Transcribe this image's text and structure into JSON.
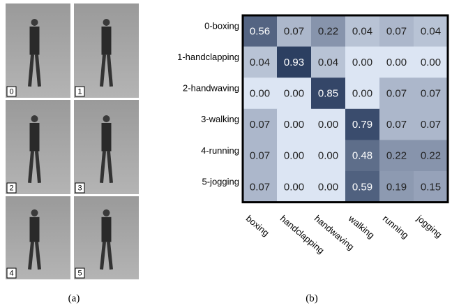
{
  "panel_a": {
    "labels": [
      "0",
      "1",
      "2",
      "3",
      "4",
      "5"
    ],
    "caption": "(a)"
  },
  "chart_data": {
    "type": "heatmap",
    "caption": "(b)",
    "y_categories": [
      "0-boxing",
      "1-handclapping",
      "2-handwaving",
      "3-walking",
      "4-running",
      "5-jogging"
    ],
    "x_categories": [
      "boxing",
      "handclapping",
      "handwaving",
      "walking",
      "running",
      "jogging"
    ],
    "values": [
      [
        0.56,
        0.07,
        0.22,
        0.04,
        0.07,
        0.04
      ],
      [
        0.04,
        0.93,
        0.04,
        0,
        0,
        0
      ],
      [
        0,
        0,
        0.85,
        0,
        0.07,
        0.07
      ],
      [
        0.07,
        0,
        0,
        0.79,
        0.07,
        0.07
      ],
      [
        0.07,
        0,
        0,
        0.48,
        0.22,
        0.22
      ],
      [
        0.07,
        0,
        0,
        0.59,
        0.19,
        0.15
      ]
    ],
    "value_labels": [
      [
        "0.56",
        "0.07",
        "0.22",
        "0.04",
        "0.07",
        "0.04"
      ],
      [
        "0.04",
        "0.93",
        "0.04",
        "0.00",
        "0.00",
        "0.00"
      ],
      [
        "0.00",
        "0.00",
        "0.85",
        "0.00",
        "0.07",
        "0.07"
      ],
      [
        "0.07",
        "0.00",
        "0.00",
        "0.79",
        "0.07",
        "0.07"
      ],
      [
        "0.07",
        "0.00",
        "0.00",
        "0.48",
        "0.22",
        "0.22"
      ],
      [
        "0.07",
        "0.00",
        "0.00",
        "0.59",
        "0.19",
        "0.15"
      ]
    ],
    "colorscale": [
      "#dce5f3",
      "#26395c"
    ]
  }
}
